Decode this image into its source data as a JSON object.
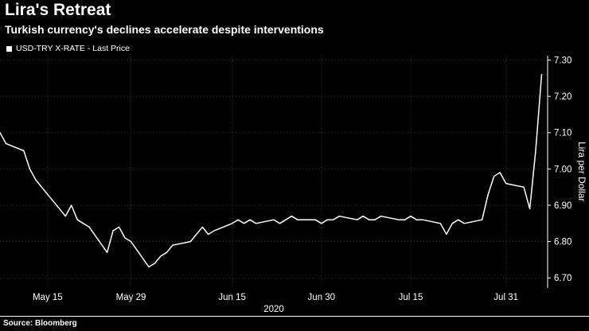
{
  "footer": {
    "source": "Source: Bloomberg"
  },
  "colors": {
    "background": "#000000",
    "foreground": "#ffffff",
    "gridline": "#3b3b3b",
    "series_line": "#ffffff"
  },
  "chart_data": {
    "type": "line",
    "title": "Lira's Retreat",
    "subtitle": "Turkish currency's declines accelerate despite interventions",
    "legend": "USD-TRY X-RATE - Last Price",
    "ylabel": "Lira per Dollar",
    "xlabel": "2020",
    "grid": true,
    "legend_position": "top-left",
    "ylim": [
      6.672,
      7.312
    ],
    "yticks": [
      6.7,
      6.8,
      6.9,
      7.0,
      7.1,
      7.2,
      7.3
    ],
    "x_start_date": "2020-05-07",
    "x_end_date": "2020-08-07",
    "xticks": [
      {
        "date": "2020-05-15",
        "label": "May 15"
      },
      {
        "date": "2020-05-29",
        "label": "May 29"
      },
      {
        "date": "2020-06-15",
        "label": "Jun 15"
      },
      {
        "date": "2020-06-30",
        "label": "Jun 30"
      },
      {
        "date": "2020-07-15",
        "label": "Jul 15"
      },
      {
        "date": "2020-07-31",
        "label": "Jul 31"
      }
    ],
    "series": [
      {
        "name": "USD-TRY X-RATE - Last Price",
        "points": [
          [
            "2020-05-07",
            7.1
          ],
          [
            "2020-05-08",
            7.07
          ],
          [
            "2020-05-11",
            7.05
          ],
          [
            "2020-05-12",
            7.0
          ],
          [
            "2020-05-13",
            6.97
          ],
          [
            "2020-05-14",
            6.95
          ],
          [
            "2020-05-15",
            6.93
          ],
          [
            "2020-05-18",
            6.87
          ],
          [
            "2020-05-19",
            6.9
          ],
          [
            "2020-05-20",
            6.86
          ],
          [
            "2020-05-21",
            6.85
          ],
          [
            "2020-05-22",
            6.84
          ],
          [
            "2020-05-25",
            6.77
          ],
          [
            "2020-05-26",
            6.83
          ],
          [
            "2020-05-27",
            6.84
          ],
          [
            "2020-05-28",
            6.81
          ],
          [
            "2020-05-29",
            6.8
          ],
          [
            "2020-06-01",
            6.73
          ],
          [
            "2020-06-02",
            6.74
          ],
          [
            "2020-06-03",
            6.76
          ],
          [
            "2020-06-04",
            6.77
          ],
          [
            "2020-06-05",
            6.79
          ],
          [
            "2020-06-08",
            6.8
          ],
          [
            "2020-06-09",
            6.82
          ],
          [
            "2020-06-10",
            6.84
          ],
          [
            "2020-06-11",
            6.82
          ],
          [
            "2020-06-12",
            6.83
          ],
          [
            "2020-06-15",
            6.85
          ],
          [
            "2020-06-16",
            6.86
          ],
          [
            "2020-06-17",
            6.85
          ],
          [
            "2020-06-18",
            6.86
          ],
          [
            "2020-06-19",
            6.85
          ],
          [
            "2020-06-22",
            6.86
          ],
          [
            "2020-06-23",
            6.85
          ],
          [
            "2020-06-24",
            6.86
          ],
          [
            "2020-06-25",
            6.87
          ],
          [
            "2020-06-26",
            6.86
          ],
          [
            "2020-06-29",
            6.86
          ],
          [
            "2020-06-30",
            6.85
          ],
          [
            "2020-07-01",
            6.86
          ],
          [
            "2020-07-02",
            6.86
          ],
          [
            "2020-07-03",
            6.87
          ],
          [
            "2020-07-06",
            6.86
          ],
          [
            "2020-07-07",
            6.87
          ],
          [
            "2020-07-08",
            6.86
          ],
          [
            "2020-07-09",
            6.86
          ],
          [
            "2020-07-10",
            6.87
          ],
          [
            "2020-07-13",
            6.86
          ],
          [
            "2020-07-14",
            6.86
          ],
          [
            "2020-07-15",
            6.87
          ],
          [
            "2020-07-16",
            6.86
          ],
          [
            "2020-07-17",
            6.86
          ],
          [
            "2020-07-20",
            6.85
          ],
          [
            "2020-07-21",
            6.82
          ],
          [
            "2020-07-22",
            6.85
          ],
          [
            "2020-07-23",
            6.86
          ],
          [
            "2020-07-24",
            6.85
          ],
          [
            "2020-07-27",
            6.86
          ],
          [
            "2020-07-28",
            6.93
          ],
          [
            "2020-07-29",
            6.98
          ],
          [
            "2020-07-30",
            6.99
          ],
          [
            "2020-07-31",
            6.96
          ],
          [
            "2020-08-03",
            6.95
          ],
          [
            "2020-08-04",
            6.89
          ],
          [
            "2020-08-05",
            7.05
          ],
          [
            "2020-08-06",
            7.26
          ]
        ]
      }
    ]
  }
}
